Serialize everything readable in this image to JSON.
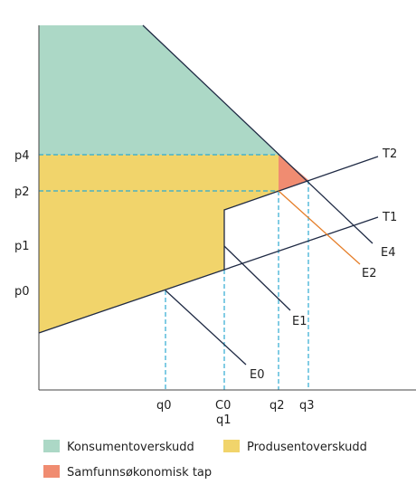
{
  "colors": {
    "consumer_surplus": "#acd8c6",
    "producer_surplus": "#f1d46b",
    "deadweight_loss": "#f08c71",
    "guide": "#2eaad1",
    "e2_line": "#e57e29",
    "line": "#1f2a44"
  },
  "labels": {
    "y_p4": "p4",
    "y_p2": "p2",
    "y_p1": "p1",
    "y_p0": "p0",
    "x_q0": "q0",
    "x_c0": "C0",
    "x_q1": "q1",
    "x_q2": "q2",
    "x_q3": "q3",
    "t2": "T2",
    "t1": "T1",
    "e4": "E4",
    "e2": "E2",
    "e1": "E1",
    "e0": "E0"
  },
  "legend": {
    "consumer": "Konsumentoverskudd",
    "producer": "Produsentoverskudd",
    "loss": "Samfunnsøkonomisk tap"
  }
}
